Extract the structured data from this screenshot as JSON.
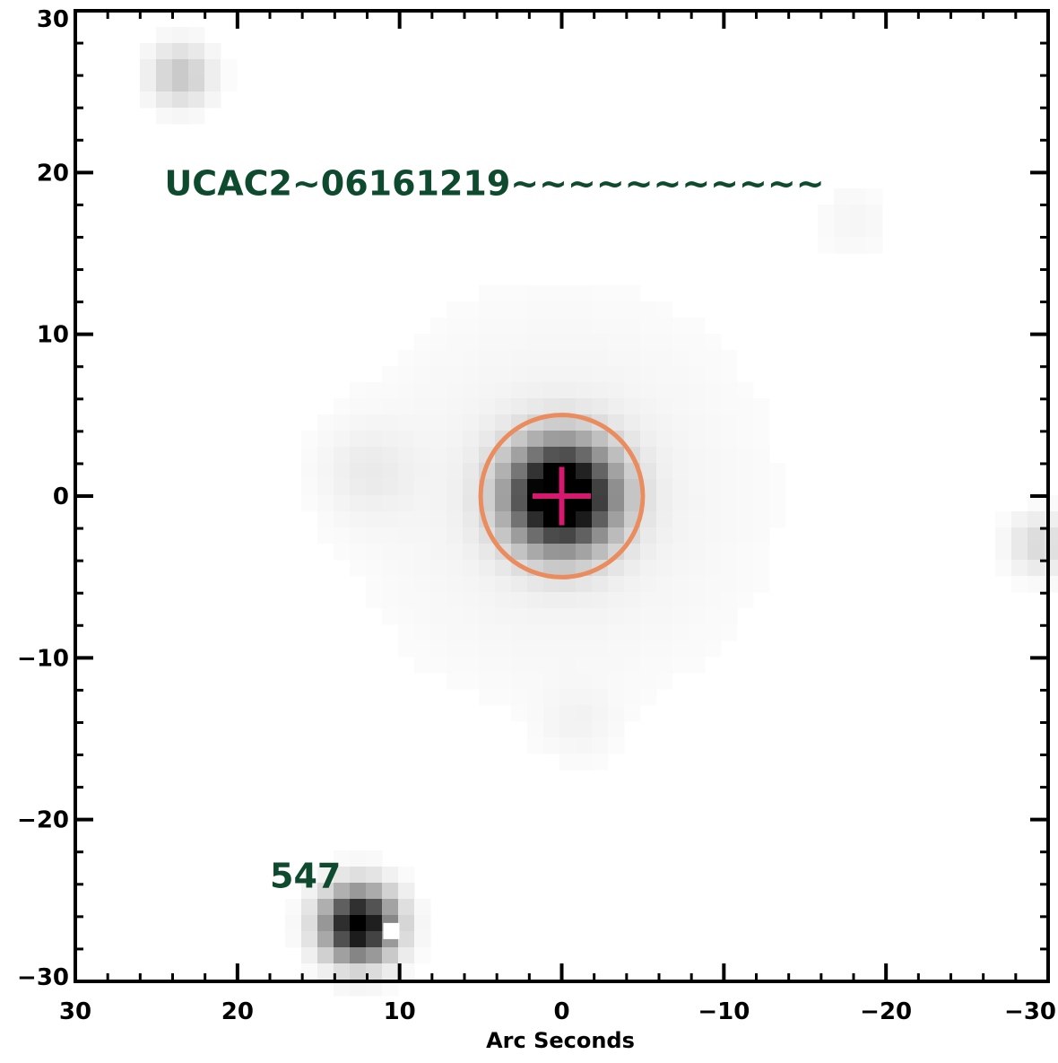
{
  "colors": {
    "frame": "#000000",
    "annotation_text": "#0e4a2e",
    "aperture_circle": "#ea8c5e",
    "center_cross": "#d6186e",
    "background": "#ffffff"
  },
  "chart_data": {
    "type": "image",
    "xlabel": "Arc Seconds",
    "ylabel": "",
    "xlim": [
      30,
      -30
    ],
    "ylim": [
      -30,
      30
    ],
    "x_ticks": [
      30,
      20,
      10,
      0,
      -10,
      -20,
      -30
    ],
    "x_tick_labels": [
      "30",
      "20",
      "10",
      "0",
      "−10",
      "−20",
      "−30"
    ],
    "y_ticks": [
      30,
      20,
      10,
      0,
      -10,
      -20,
      -30
    ],
    "y_tick_labels": [
      "30",
      "20",
      "10",
      "0",
      "−10",
      "−20",
      "−30"
    ],
    "x_minor_step": 2,
    "y_minor_step": 2,
    "annotations": [
      {
        "id": "ucac2",
        "text": "UCAC2~06161219~~~~~~~~~~~",
        "x": 24.5,
        "y": 18.6
      },
      {
        "id": "547",
        "text": "547",
        "x": 18.0,
        "y": -24.2
      }
    ],
    "markers": [
      {
        "type": "circle",
        "x": 0,
        "y": 0,
        "radius": 5.0
      },
      {
        "type": "cross",
        "x": 0,
        "y": 0,
        "half_width": 1.8,
        "half_height": 1.8
      }
    ],
    "sources": [
      {
        "name": "target",
        "x": 0,
        "y": 0,
        "peak": 1.0,
        "sigma": 2.2
      },
      {
        "name": "star-547",
        "x": 12.5,
        "y": -26.5,
        "peak": 0.85,
        "sigma": 1.5
      },
      {
        "name": "star-top-left",
        "x": 23.5,
        "y": 26.0,
        "peak": 0.18,
        "sigma": 1.3
      },
      {
        "name": "star-right-edge",
        "x": -29.5,
        "y": -3.0,
        "peak": 0.12,
        "sigma": 1.3
      },
      {
        "name": "faint-halo",
        "x": 0,
        "y": 0,
        "peak": 0.05,
        "sigma": 8.0
      },
      {
        "name": "faint-patch-1",
        "x": 12,
        "y": 1.5,
        "peak": 0.05,
        "sigma": 2.0
      },
      {
        "name": "faint-patch-2",
        "x": -18,
        "y": 17,
        "peak": 0.03,
        "sigma": 1.6
      },
      {
        "name": "faint-patch-3",
        "x": -1,
        "y": -14,
        "peak": 0.03,
        "sigma": 1.6
      }
    ]
  }
}
